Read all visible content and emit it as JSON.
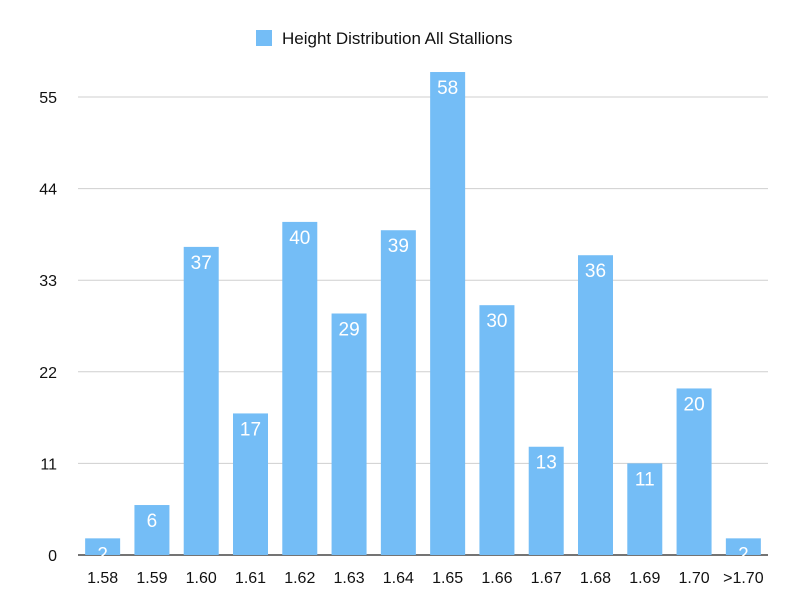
{
  "chart_data": {
    "type": "bar",
    "title": "",
    "xlabel": "",
    "ylabel": "",
    "categories": [
      "1.58",
      "1.59",
      "1.60",
      "1.61",
      "1.62",
      "1.63",
      "1.64",
      "1.65",
      "1.66",
      "1.67",
      "1.68",
      "1.69",
      "1.70",
      ">1.70"
    ],
    "series": [
      {
        "name": "Height Distribution All Stallions",
        "values": [
          2,
          6,
          37,
          17,
          40,
          29,
          39,
          58,
          30,
          13,
          36,
          11,
          20,
          2
        ],
        "color": "#74bdf6"
      }
    ],
    "ylim": [
      0,
      55
    ],
    "yticks": [
      0,
      11,
      22,
      33,
      44,
      55
    ],
    "grid": true,
    "legend": "top-center",
    "data_labels": true,
    "label_color": "#ffffff"
  }
}
